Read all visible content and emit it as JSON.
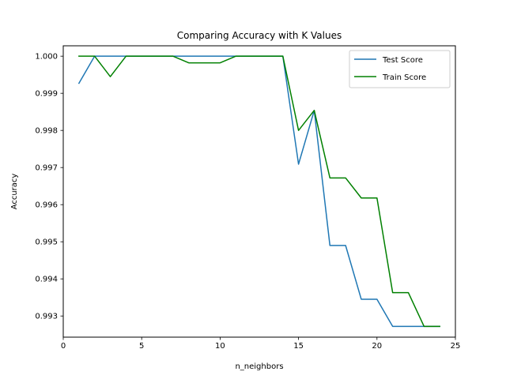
{
  "chart_data": {
    "type": "line",
    "title": "Comparing Accuracy with K Values",
    "xlabel": "n_neighbors",
    "ylabel": "Accuracy",
    "xlim": [
      0,
      25
    ],
    "ylim": [
      0.99243,
      1.00028
    ],
    "xticks": [
      0,
      5,
      10,
      15,
      20,
      25
    ],
    "yticks": [
      0.993,
      0.994,
      0.995,
      0.996,
      0.997,
      0.998,
      0.999,
      1.0
    ],
    "xtick_labels": [
      "0",
      "5",
      "10",
      "15",
      "20",
      "25"
    ],
    "ytick_labels": [
      "0.993",
      "0.994",
      "0.995",
      "0.996",
      "0.997",
      "0.998",
      "0.999",
      "1.000"
    ],
    "grid": false,
    "legend_position": "top-right",
    "x": [
      1,
      2,
      3,
      4,
      5,
      6,
      7,
      8,
      9,
      10,
      11,
      12,
      13,
      14,
      15,
      16,
      17,
      18,
      19,
      20,
      21,
      22,
      23,
      24
    ],
    "series": [
      {
        "name": "Test Score",
        "color": "#1f77b4",
        "values": [
          0.99927,
          1.0,
          1.0,
          1.0,
          1.0,
          1.0,
          1.0,
          1.0,
          1.0,
          1.0,
          1.0,
          1.0,
          1.0,
          1.0,
          0.99709,
          0.99854,
          0.9949,
          0.9949,
          0.99345,
          0.99345,
          0.99272,
          0.99272,
          0.99272,
          0.99272
        ]
      },
      {
        "name": "Train Score",
        "color": "#008000",
        "values": [
          1.0,
          1.0,
          0.99945,
          1.0,
          1.0,
          1.0,
          1.0,
          0.99982,
          0.99982,
          0.99982,
          1.0,
          1.0,
          1.0,
          1.0,
          0.998,
          0.99854,
          0.99672,
          0.99672,
          0.99618,
          0.99618,
          0.99363,
          0.99363,
          0.99272,
          0.99272
        ]
      }
    ]
  }
}
